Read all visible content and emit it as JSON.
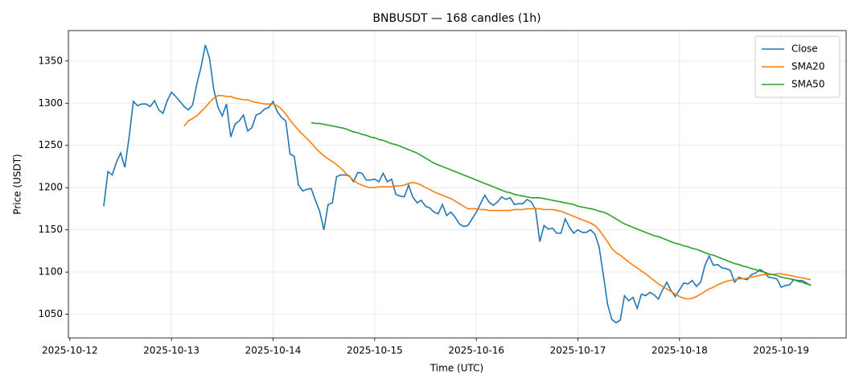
{
  "chart_data": {
    "type": "line",
    "title": "BNBUSDT — 168 candles (1h)",
    "x_label": "Time (UTC)",
    "y_label": "Price (USDT)",
    "xlim": [
      -8.35,
      175.35
    ],
    "xticks": [
      {
        "value": -8,
        "label": "2025-10-12"
      },
      {
        "value": 16,
        "label": "2025-10-13"
      },
      {
        "value": 40,
        "label": "2025-10-14"
      },
      {
        "value": 64,
        "label": "2025-10-15"
      },
      {
        "value": 88,
        "label": "2025-10-16"
      },
      {
        "value": 112,
        "label": "2025-10-17"
      },
      {
        "value": 136,
        "label": "2025-10-18"
      },
      {
        "value": 160,
        "label": "2025-10-19"
      }
    ],
    "ylim": [
      1022,
      1386
    ],
    "yticks": [
      1050,
      1100,
      1150,
      1200,
      1250,
      1300,
      1350
    ],
    "grid": true,
    "legend": "upper-right",
    "series": [
      {
        "name": "Close",
        "color": "#1f77b4",
        "values": [
          1178,
          1219,
          1215,
          1230,
          1241,
          1224,
          1260,
          1302,
          1297,
          1299,
          1299,
          1296,
          1303,
          1292,
          1288,
          1303,
          1313,
          1308,
          1302,
          1296,
          1292,
          1298,
          1323,
          1343,
          1369,
          1353,
          1316,
          1295,
          1285,
          1299,
          1260,
          1275,
          1279,
          1286,
          1267,
          1271,
          1286,
          1288,
          1293,
          1295,
          1302,
          1290,
          1283,
          1279,
          1240,
          1237,
          1203,
          1196,
          1198,
          1199,
          1185,
          1172,
          1150,
          1180,
          1182,
          1213,
          1215,
          1215,
          1214,
          1207,
          1218,
          1217,
          1209,
          1209,
          1210,
          1207,
          1217,
          1207,
          1210,
          1192,
          1190,
          1189,
          1203,
          1189,
          1182,
          1185,
          1178,
          1176,
          1171,
          1169,
          1180,
          1167,
          1171,
          1165,
          1157,
          1154,
          1155,
          1163,
          1171,
          1181,
          1191,
          1183,
          1179,
          1183,
          1189,
          1186,
          1188,
          1180,
          1181,
          1181,
          1186,
          1183,
          1174,
          1136,
          1155,
          1151,
          1152,
          1146,
          1146,
          1163,
          1153,
          1146,
          1150,
          1147,
          1147,
          1150,
          1145,
          1130,
          1097,
          1062,
          1044,
          1040,
          1043,
          1072,
          1066,
          1070,
          1057,
          1074,
          1072,
          1076,
          1073,
          1068,
          1079,
          1088,
          1078,
          1071,
          1079,
          1087,
          1086,
          1090,
          1083,
          1088,
          1108,
          1119,
          1108,
          1109,
          1105,
          1104,
          1102,
          1088,
          1094,
          1092,
          1091,
          1097,
          1099,
          1103,
          1100,
          1094,
          1093,
          1092,
          1082,
          1084,
          1085,
          1091,
          1090,
          1090,
          1087,
          1084
        ]
      },
      {
        "name": "SMA20",
        "color": "#ff7f0e",
        "values": [
          null,
          null,
          null,
          null,
          null,
          null,
          null,
          null,
          null,
          null,
          null,
          null,
          null,
          null,
          null,
          null,
          null,
          null,
          null,
          1273,
          1279,
          1282,
          1285,
          1290,
          1295,
          1301,
          1306,
          1309,
          1309,
          1308,
          1308,
          1306,
          1305,
          1304,
          1304,
          1302,
          1301,
          1300,
          1299,
          1299,
          1299,
          1297,
          1293,
          1287,
          1280,
          1274,
          1268,
          1263,
          1258,
          1253,
          1247,
          1242,
          1238,
          1234,
          1231,
          1227,
          1223,
          1218,
          1213,
          1209,
          1205,
          1203,
          1201,
          1200,
          1200,
          1201,
          1201,
          1201,
          1201,
          1202,
          1202,
          1203,
          1205,
          1206,
          1205,
          1203,
          1200,
          1198,
          1195,
          1193,
          1191,
          1189,
          1187,
          1184,
          1181,
          1178,
          1175,
          1175,
          1175,
          1174,
          1174,
          1173,
          1173,
          1173,
          1173,
          1173,
          1173,
          1174,
          1174,
          1174,
          1175,
          1175,
          1175,
          1175,
          1174,
          1174,
          1174,
          1173,
          1172,
          1170,
          1168,
          1166,
          1164,
          1162,
          1160,
          1158,
          1155,
          1150,
          1143,
          1136,
          1128,
          1123,
          1120,
          1116,
          1112,
          1108,
          1105,
          1101,
          1098,
          1094,
          1090,
          1086,
          1083,
          1080,
          1077,
          1074,
          1071,
          1069,
          1068,
          1069,
          1071,
          1074,
          1077,
          1080,
          1082,
          1085,
          1087,
          1089,
          1090,
          1091,
          1092,
          1092,
          1093,
          1094,
          1095,
          1096,
          1097,
          1097,
          1097,
          1098,
          1098,
          1097,
          1096,
          1095,
          1094,
          1093,
          1092,
          1091
        ]
      },
      {
        "name": "SMA50",
        "color": "#2ca02c",
        "values": [
          null,
          null,
          null,
          null,
          null,
          null,
          null,
          null,
          null,
          null,
          null,
          null,
          null,
          null,
          null,
          null,
          null,
          null,
          null,
          null,
          null,
          null,
          null,
          null,
          null,
          null,
          null,
          null,
          null,
          null,
          null,
          null,
          null,
          null,
          null,
          null,
          null,
          null,
          null,
          null,
          null,
          null,
          null,
          null,
          null,
          null,
          null,
          null,
          null,
          1277,
          1276,
          1276,
          1275,
          1274,
          1273,
          1272,
          1271,
          1270,
          1268,
          1266,
          1265,
          1263,
          1262,
          1260,
          1259,
          1257,
          1256,
          1254,
          1252,
          1251,
          1249,
          1247,
          1245,
          1243,
          1241,
          1238,
          1235,
          1232,
          1229,
          1227,
          1225,
          1223,
          1221,
          1219,
          1217,
          1215,
          1213,
          1211,
          1209,
          1207,
          1205,
          1203,
          1201,
          1199,
          1197,
          1195,
          1194,
          1192,
          1191,
          1190,
          1189,
          1188,
          1188,
          1188,
          1187,
          1186,
          1185,
          1184,
          1183,
          1182,
          1181,
          1180,
          1178,
          1177,
          1176,
          1175,
          1174,
          1172,
          1171,
          1169,
          1166,
          1163,
          1160,
          1157,
          1155,
          1153,
          1151,
          1149,
          1147,
          1145,
          1143,
          1142,
          1140,
          1138,
          1136,
          1134,
          1133,
          1131,
          1130,
          1128,
          1127,
          1125,
          1123,
          1121,
          1120,
          1118,
          1116,
          1114,
          1112,
          1110,
          1109,
          1107,
          1106,
          1104,
          1103,
          1101,
          1100,
          1098,
          1097,
          1096,
          1094,
          1093,
          1092,
          1091,
          1089,
          1088,
          1086,
          1085
        ]
      }
    ]
  }
}
